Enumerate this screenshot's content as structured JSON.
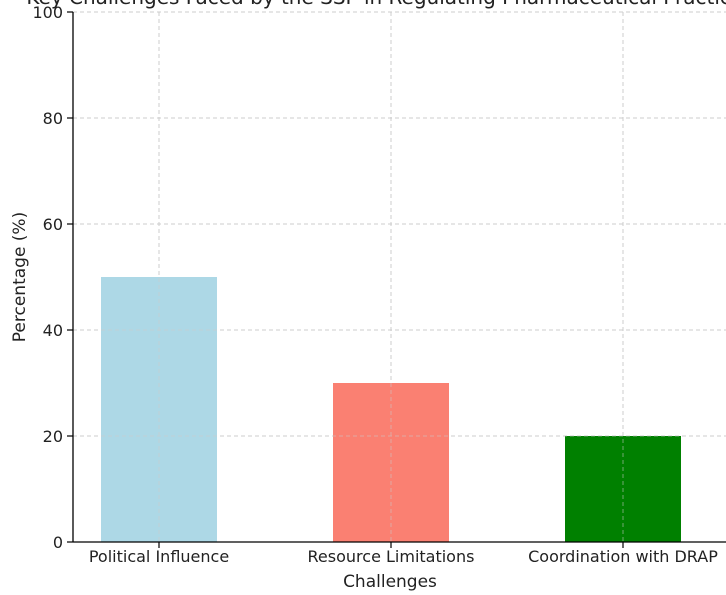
{
  "chart_data": {
    "type": "bar",
    "title": "Key Challenges Faced by the SSP in Regulating Pharmaceutical Practices",
    "xlabel": "Challenges",
    "ylabel": "Percentage (%)",
    "categories": [
      "Political Influence",
      "Resource Limitations",
      "Coordination with DRAP"
    ],
    "values": [
      50,
      30,
      20
    ],
    "colors": [
      "#add8e6",
      "#fa8072",
      "#008000"
    ],
    "ylim": [
      0,
      100
    ],
    "yticks": [
      0,
      20,
      40,
      60,
      80,
      100
    ],
    "grid": true
  }
}
